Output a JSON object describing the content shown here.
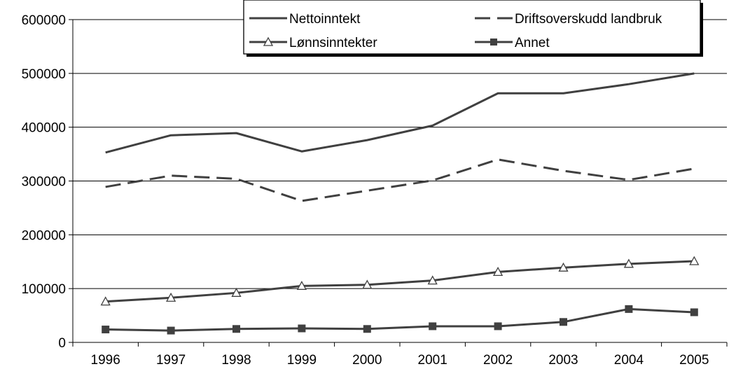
{
  "chart_data": {
    "type": "line",
    "title": "",
    "xlabel": "",
    "ylabel": "",
    "categories": [
      "1996",
      "1997",
      "1998",
      "1999",
      "2000",
      "2001",
      "2002",
      "2003",
      "2004",
      "2005"
    ],
    "ylim": [
      0,
      600000
    ],
    "yticks": [
      "0",
      "100000",
      "200000",
      "300000",
      "400000",
      "500000",
      "600000"
    ],
    "grid": "horizontal",
    "legend_position": "top-right",
    "series": [
      {
        "name": "Nettoinntekt",
        "style": "solid",
        "marker": "none",
        "values": [
          353000,
          385000,
          389000,
          355000,
          376000,
          403000,
          463000,
          463000,
          480000,
          500000
        ]
      },
      {
        "name": "Driftsoverskudd landbruk",
        "style": "dashed",
        "marker": "none",
        "values": [
          289000,
          310000,
          304000,
          263000,
          282000,
          301000,
          340000,
          319000,
          302000,
          323000
        ]
      },
      {
        "name": "Lønnsinntekter",
        "style": "solid",
        "marker": "triangle",
        "values": [
          76000,
          83000,
          92000,
          105000,
          107000,
          115000,
          131000,
          139000,
          146000,
          151000
        ]
      },
      {
        "name": "Annet",
        "style": "solid",
        "marker": "square",
        "values": [
          24000,
          22000,
          25000,
          26000,
          25000,
          30000,
          30000,
          38000,
          62000,
          56000
        ]
      }
    ],
    "colors": {
      "line": "#404040",
      "grid": "#000000",
      "background": "#ffffff"
    }
  }
}
